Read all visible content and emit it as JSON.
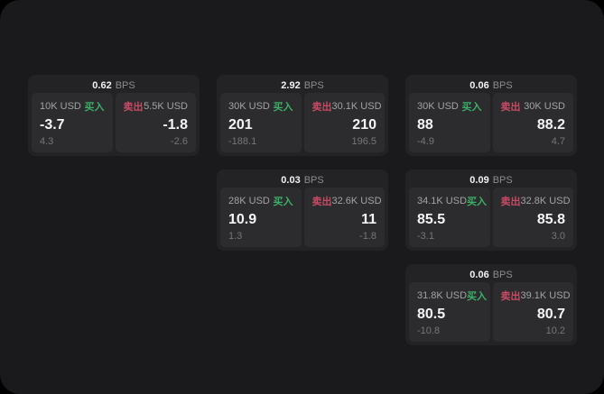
{
  "page": {
    "bg": "#1a1a1c",
    "card_bg": "#232325",
    "panel_bg": "#2c2c2e",
    "accent_green": "#3cae67",
    "accent_red": "#c84a64"
  },
  "labels": {
    "buy": "买入",
    "sell": "卖出",
    "bps": "BPS"
  },
  "cards": [
    {
      "bps": "0.62",
      "buy": {
        "size": "10K USD",
        "value": "-3.7",
        "sub": "4.3"
      },
      "sell": {
        "size": "5.5K USD",
        "value": "-1.8",
        "sub": "-2.6"
      }
    },
    {
      "bps": "2.92",
      "buy": {
        "size": "30K USD",
        "value": "201",
        "sub": "-188.1"
      },
      "sell": {
        "size": "30.1K USD",
        "value": "210",
        "sub": "196.5"
      }
    },
    {
      "bps": "0.06",
      "buy": {
        "size": "30K USD",
        "value": "88",
        "sub": "-4.9"
      },
      "sell": {
        "size": "30K USD",
        "value": "88.2",
        "sub": "4.7"
      }
    },
    {
      "bps": "0.03",
      "buy": {
        "size": "28K USD",
        "value": "10.9",
        "sub": "1.3"
      },
      "sell": {
        "size": "32.6K USD",
        "value": "11",
        "sub": "-1.8"
      }
    },
    {
      "bps": "0.09",
      "buy": {
        "size": "34.1K USD",
        "value": "85.5",
        "sub": "-3.1"
      },
      "sell": {
        "size": "32.8K USD",
        "value": "85.8",
        "sub": "3.0"
      }
    },
    {
      "bps": "0.06",
      "buy": {
        "size": "31.8K USD",
        "value": "80.5",
        "sub": "-10.8"
      },
      "sell": {
        "size": "39.1K USD",
        "value": "80.7",
        "sub": "10.2"
      }
    }
  ]
}
